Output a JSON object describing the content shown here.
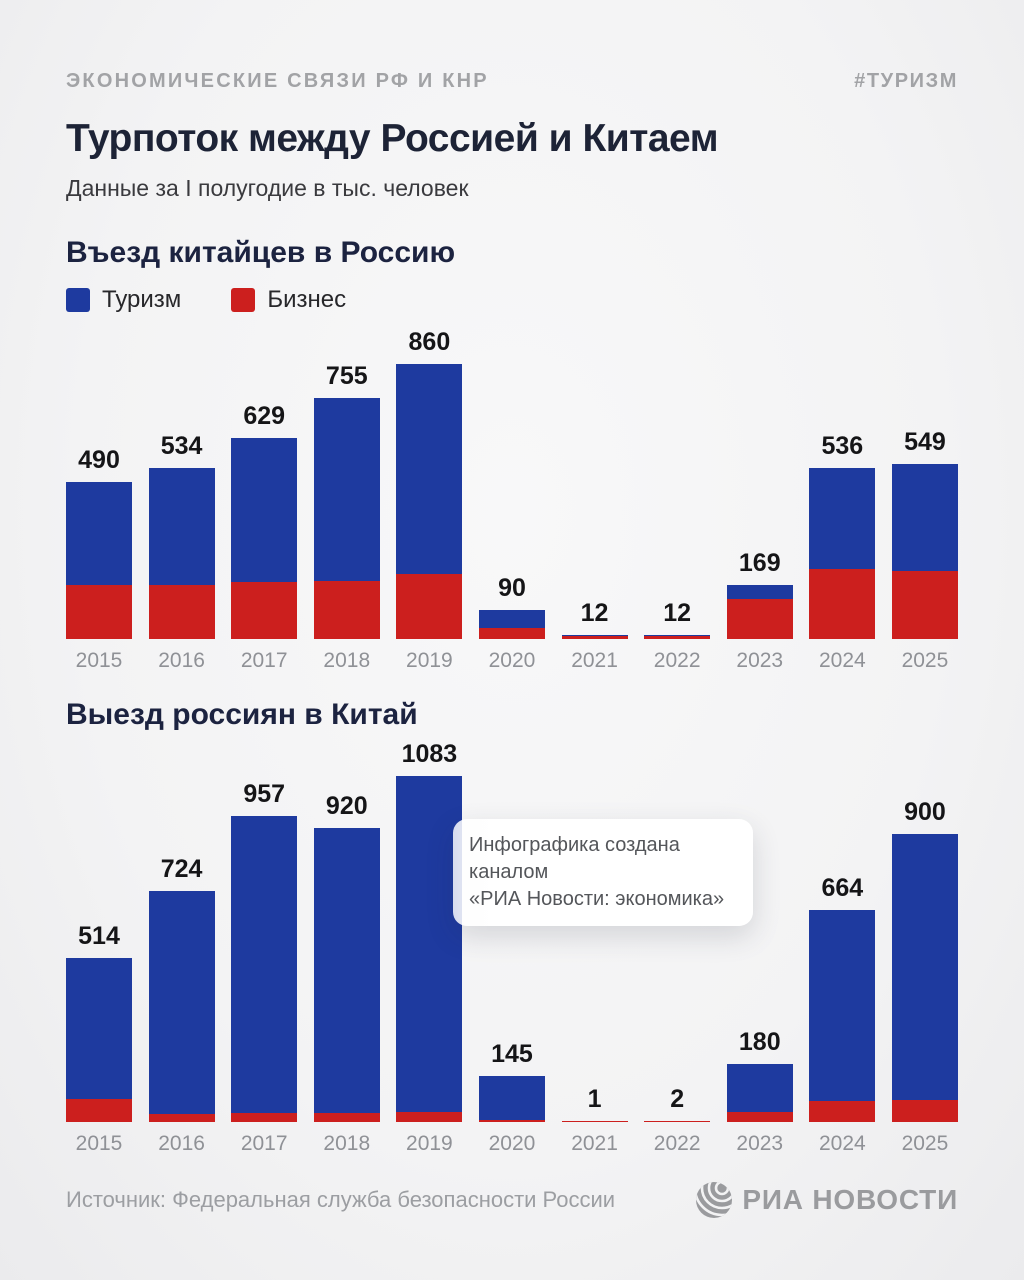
{
  "page": {
    "kicker": "ЭКОНОМИЧЕСКИЕ СВЯЗИ РФ И КНР",
    "hashtag": "#ТУРИЗМ",
    "title": "Турпоток между Россией и Китаем",
    "subtitle": "Данные за I полугодие в тыс. человек",
    "source": "Источник: Федеральная служба безопасности России",
    "logo_text": "РИА НОВОСТИ"
  },
  "legend": {
    "tourism_label": "Туризм",
    "business_label": "Бизнес"
  },
  "tooltip": {
    "line1": "Инфографика создана каналом",
    "line2": "«РИА Новости: экономика»"
  },
  "colors": {
    "tourism_blue": "#1e3a9f",
    "business_red": "#cc1f1e",
    "title_navy": "#1d2336",
    "muted_gray": "#9b9da1",
    "label_black": "#151517"
  },
  "chart_data": [
    {
      "type": "bar",
      "stacked": true,
      "title": "Въезд китайцев в Россию",
      "unit": "тыс. человек (I полугодие)",
      "categories": [
        "2015",
        "2016",
        "2017",
        "2018",
        "2019",
        "2020",
        "2021",
        "2022",
        "2023",
        "2024",
        "2025"
      ],
      "label_values": [
        490,
        534,
        629,
        755,
        860,
        90,
        12,
        12,
        169,
        536,
        549
      ],
      "series": [
        {
          "name": "Туризм",
          "color": "#1e3a9f",
          "values": [
            320,
            364,
            451,
            574,
            656,
            56,
            3,
            3,
            45,
            316,
            337
          ]
        },
        {
          "name": "Бизнес",
          "color": "#cc1f1e",
          "values": [
            170,
            170,
            178,
            181,
            204,
            34,
            9,
            9,
            124,
            220,
            212
          ]
        }
      ],
      "value_labels_shown": "totals",
      "series_split_note": "segment split estimated from bar pixels; only totals are labeled on chart",
      "ylim": [
        0,
        900
      ],
      "grid": false,
      "legend_position": "top-left"
    },
    {
      "type": "bar",
      "stacked": true,
      "title": "Выезд россиян в Китай",
      "unit": "тыс. человек (I полугодие)",
      "categories": [
        "2015",
        "2016",
        "2017",
        "2018",
        "2019",
        "2020",
        "2021",
        "2022",
        "2023",
        "2024",
        "2025"
      ],
      "label_values": [
        514,
        724,
        957,
        920,
        1083,
        145,
        1,
        2,
        180,
        664,
        900
      ],
      "series": [
        {
          "name": "Туризм",
          "color": "#1e3a9f",
          "values": [
            442,
            699,
            930,
            893,
            1053,
            139,
            0,
            1,
            150,
            598,
            831
          ]
        },
        {
          "name": "Бизнес",
          "color": "#cc1f1e",
          "values": [
            72,
            25,
            27,
            27,
            30,
            6,
            1,
            1,
            30,
            66,
            69
          ]
        }
      ],
      "value_labels_shown": "totals",
      "series_split_note": "segment split estimated from bar pixels; only totals are labeled on chart",
      "ylim": [
        0,
        1100
      ],
      "grid": false,
      "legend_position": "none"
    }
  ]
}
